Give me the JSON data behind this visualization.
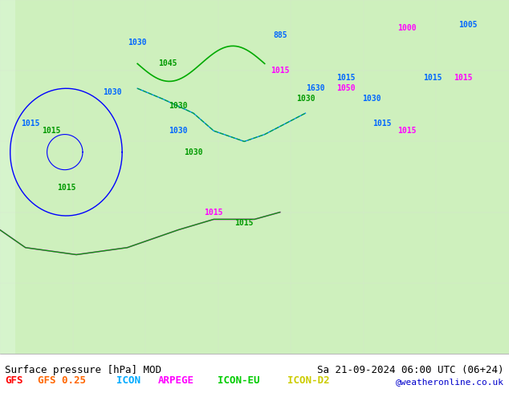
{
  "title_left": "Surface pressure [hPa] MOD",
  "title_right": "Sa 21-09-2024 06:00 UTC (06+24)",
  "legend_items": [
    {
      "label": "GFS",
      "color": "#FF0000"
    },
    {
      "label": "GFS 0.25",
      "color": "#FF6600"
    },
    {
      "label": "ICON",
      "color": "#00AAFF"
    },
    {
      "label": "ARPEGE",
      "color": "#FF00FF"
    },
    {
      "label": "ICON-EU",
      "color": "#00CC00"
    },
    {
      "label": "ICON-D2",
      "color": "#CCCC00"
    }
  ],
  "watermark": "@weatheronline.co.uk",
  "bg_map_color": "#CCFFCC",
  "bg_sea_color": "#FFFFFF",
  "land_color": "#AADDAA",
  "fig_width": 6.34,
  "fig_height": 4.9,
  "dpi": 100,
  "bottom_bar_color": "#F0F0F0",
  "title_fontsize": 9,
  "legend_fontsize": 9
}
